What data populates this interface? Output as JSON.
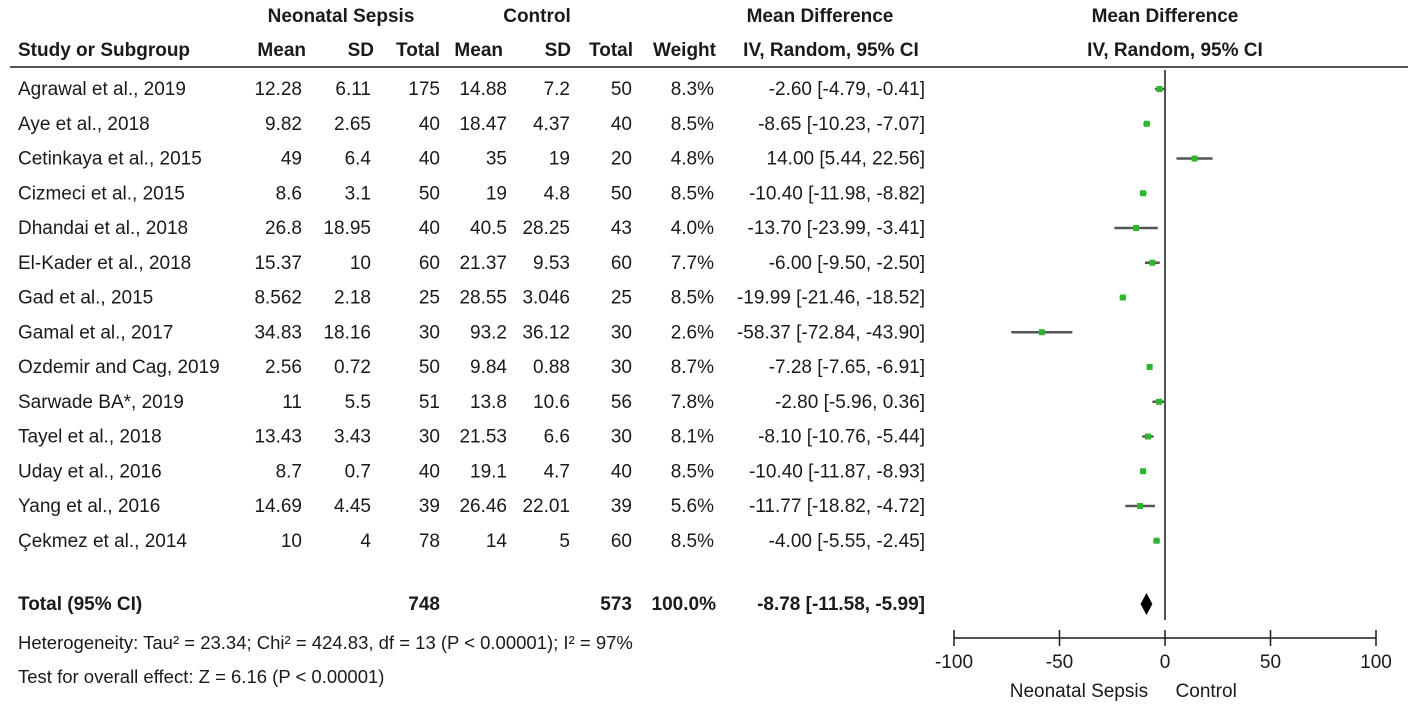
{
  "header": {
    "group1": "Neonatal Sepsis",
    "group2": "Control",
    "effect_table": "Mean Difference",
    "effect_plot": "Mean Difference",
    "study_col": "Study or Subgroup",
    "mean1": "Mean",
    "sd1": "SD",
    "total1": "Total",
    "mean2": "Mean",
    "sd2": "SD",
    "total2": "Total",
    "weight": "Weight",
    "method_table": "IV, Random, 95% CI",
    "method_plot": "IV, Random, 95% CI"
  },
  "chart_data": {
    "type": "forest",
    "xlim": [
      -100,
      100
    ],
    "x_ticks": [
      "-100",
      "-50",
      "0",
      "50",
      "100"
    ],
    "x_tick_values": [
      -100,
      -50,
      0,
      50,
      100
    ],
    "favours_left": "Neonatal Sepsis",
    "favours_right": "Control",
    "marker_color": "#2db52d",
    "studies": [
      {
        "study": "Agrawal et al., 2019",
        "mean1": "12.28",
        "sd1": "6.11",
        "n1": "175",
        "mean2": "14.88",
        "sd2": "7.2",
        "n2": "50",
        "weight": "8.3%",
        "ci_text": "-2.60 [-4.79, -0.41]",
        "md": -2.6,
        "lo": -4.79,
        "hi": -0.41
      },
      {
        "study": "Aye et al., 2018",
        "mean1": "9.82",
        "sd1": "2.65",
        "n1": "40",
        "mean2": "18.47",
        "sd2": "4.37",
        "n2": "40",
        "weight": "8.5%",
        "ci_text": "-8.65 [-10.23, -7.07]",
        "md": -8.65,
        "lo": -10.23,
        "hi": -7.07
      },
      {
        "study": "Cetinkaya et al., 2015",
        "mean1": "49",
        "sd1": "6.4",
        "n1": "40",
        "mean2": "35",
        "sd2": "19",
        "n2": "20",
        "weight": "4.8%",
        "ci_text": "14.00 [5.44, 22.56]",
        "md": 14.0,
        "lo": 5.44,
        "hi": 22.56
      },
      {
        "study": "Cizmeci et al., 2015",
        "mean1": "8.6",
        "sd1": "3.1",
        "n1": "50",
        "mean2": "19",
        "sd2": "4.8",
        "n2": "50",
        "weight": "8.5%",
        "ci_text": "-10.40 [-11.98, -8.82]",
        "md": -10.4,
        "lo": -11.98,
        "hi": -8.82
      },
      {
        "study": "Dhandai et al., 2018",
        "mean1": "26.8",
        "sd1": "18.95",
        "n1": "40",
        "mean2": "40.5",
        "sd2": "28.25",
        "n2": "43",
        "weight": "4.0%",
        "ci_text": "-13.70 [-23.99, -3.41]",
        "md": -13.7,
        "lo": -23.99,
        "hi": -3.41
      },
      {
        "study": "El-Kader et al., 2018",
        "mean1": "15.37",
        "sd1": "10",
        "n1": "60",
        "mean2": "21.37",
        "sd2": "9.53",
        "n2": "60",
        "weight": "7.7%",
        "ci_text": "-6.00 [-9.50, -2.50]",
        "md": -6.0,
        "lo": -9.5,
        "hi": -2.5
      },
      {
        "study": "Gad et al., 2015",
        "mean1": "8.562",
        "sd1": "2.18",
        "n1": "25",
        "mean2": "28.55",
        "sd2": "3.046",
        "n2": "25",
        "weight": "8.5%",
        "ci_text": "-19.99 [-21.46, -18.52]",
        "md": -19.99,
        "lo": -21.46,
        "hi": -18.52
      },
      {
        "study": "Gamal et al., 2017",
        "mean1": "34.83",
        "sd1": "18.16",
        "n1": "30",
        "mean2": "93.2",
        "sd2": "36.12",
        "n2": "30",
        "weight": "2.6%",
        "ci_text": "-58.37 [-72.84, -43.90]",
        "md": -58.37,
        "lo": -72.84,
        "hi": -43.9
      },
      {
        "study": "Ozdemir and Cag, 2019",
        "mean1": "2.56",
        "sd1": "0.72",
        "n1": "50",
        "mean2": "9.84",
        "sd2": "0.88",
        "n2": "30",
        "weight": "8.7%",
        "ci_text": "-7.28 [-7.65, -6.91]",
        "md": -7.28,
        "lo": -7.65,
        "hi": -6.91
      },
      {
        "study": "Sarwade BA*, 2019",
        "mean1": "11",
        "sd1": "5.5",
        "n1": "51",
        "mean2": "13.8",
        "sd2": "10.6",
        "n2": "56",
        "weight": "7.8%",
        "ci_text": "-2.80 [-5.96, 0.36]",
        "md": -2.8,
        "lo": -5.96,
        "hi": 0.36
      },
      {
        "study": "Tayel et al., 2018",
        "mean1": "13.43",
        "sd1": "3.43",
        "n1": "30",
        "mean2": "21.53",
        "sd2": "6.6",
        "n2": "30",
        "weight": "8.1%",
        "ci_text": "-8.10 [-10.76, -5.44]",
        "md": -8.1,
        "lo": -10.76,
        "hi": -5.44
      },
      {
        "study": "Uday et al., 2016",
        "mean1": "8.7",
        "sd1": "0.7",
        "n1": "40",
        "mean2": "19.1",
        "sd2": "4.7",
        "n2": "40",
        "weight": "8.5%",
        "ci_text": "-10.40 [-11.87, -8.93]",
        "md": -10.4,
        "lo": -11.87,
        "hi": -8.93
      },
      {
        "study": "Yang et al., 2016",
        "mean1": "14.69",
        "sd1": "4.45",
        "n1": "39",
        "mean2": "26.46",
        "sd2": "22.01",
        "n2": "39",
        "weight": "5.6%",
        "ci_text": "-11.77 [-18.82, -4.72]",
        "md": -11.77,
        "lo": -18.82,
        "hi": -4.72
      },
      {
        "study": "Çekmez et al., 2014",
        "mean1": "10",
        "sd1": "4",
        "n1": "78",
        "mean2": "14",
        "sd2": "5",
        "n2": "60",
        "weight": "8.5%",
        "ci_text": "-4.00 [-5.55, -2.45]",
        "md": -4.0,
        "lo": -5.55,
        "hi": -2.45
      }
    ],
    "total": {
      "label": "Total (95% CI)",
      "n1": "748",
      "n2": "573",
      "weight": "100.0%",
      "ci_text": "-8.78 [-11.58, -5.99]",
      "md": -8.78,
      "lo": -11.58,
      "hi": -5.99
    },
    "heterogeneity": "Heterogeneity: Tau² = 23.34; Chi² = 424.83, df = 13 (P < 0.00001); I² = 97%",
    "overall_effect": "Test for overall effect: Z = 6.16 (P < 0.00001)"
  }
}
